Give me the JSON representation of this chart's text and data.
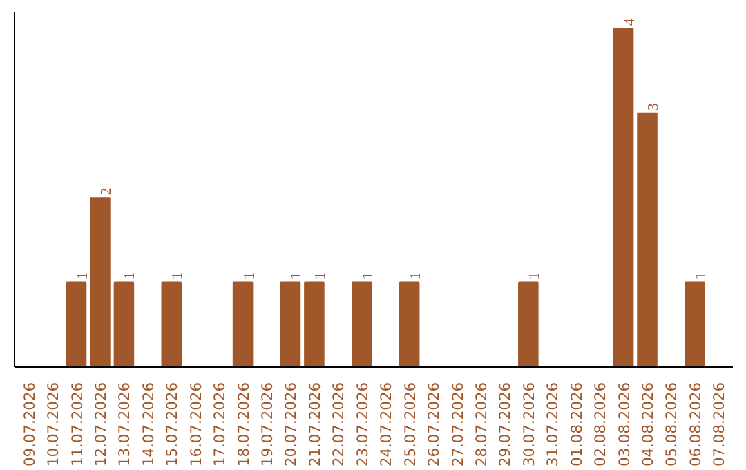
{
  "chart_data": {
    "type": "bar",
    "categories": [
      "09.07.2026",
      "10.07.2026",
      "11.07.2026",
      "12.07.2026",
      "13.07.2026",
      "14.07.2026",
      "15.07.2026",
      "16.07.2026",
      "17.07.2026",
      "18.07.2026",
      "19.07.2026",
      "20.07.2026",
      "21.07.2026",
      "22.07.2026",
      "23.07.2026",
      "24.07.2026",
      "25.07.2026",
      "26.07.2026",
      "27.07.2026",
      "28.07.2026",
      "29.07.2026",
      "30.07.2026",
      "31.07.2026",
      "01.08.2026",
      "02.08.2026",
      "03.08.2026",
      "04.08.2026",
      "05.08.2026",
      "06.08.2026",
      "07.08.2026"
    ],
    "values": [
      0,
      0,
      1,
      2,
      1,
      0,
      1,
      0,
      0,
      1,
      0,
      1,
      1,
      0,
      1,
      0,
      1,
      0,
      0,
      0,
      0,
      1,
      0,
      0,
      0,
      4,
      3,
      0,
      1,
      0
    ],
    "value_labels": [
      null,
      null,
      "1",
      "2",
      "1",
      null,
      "1",
      null,
      null,
      "1",
      null,
      "1",
      "1",
      null,
      "1",
      null,
      "1",
      null,
      null,
      null,
      null,
      "1",
      null,
      null,
      null,
      "4",
      "3",
      null,
      "1",
      null
    ],
    "color": "#a0572a",
    "tick_labels": "x",
    "grid": false
  }
}
